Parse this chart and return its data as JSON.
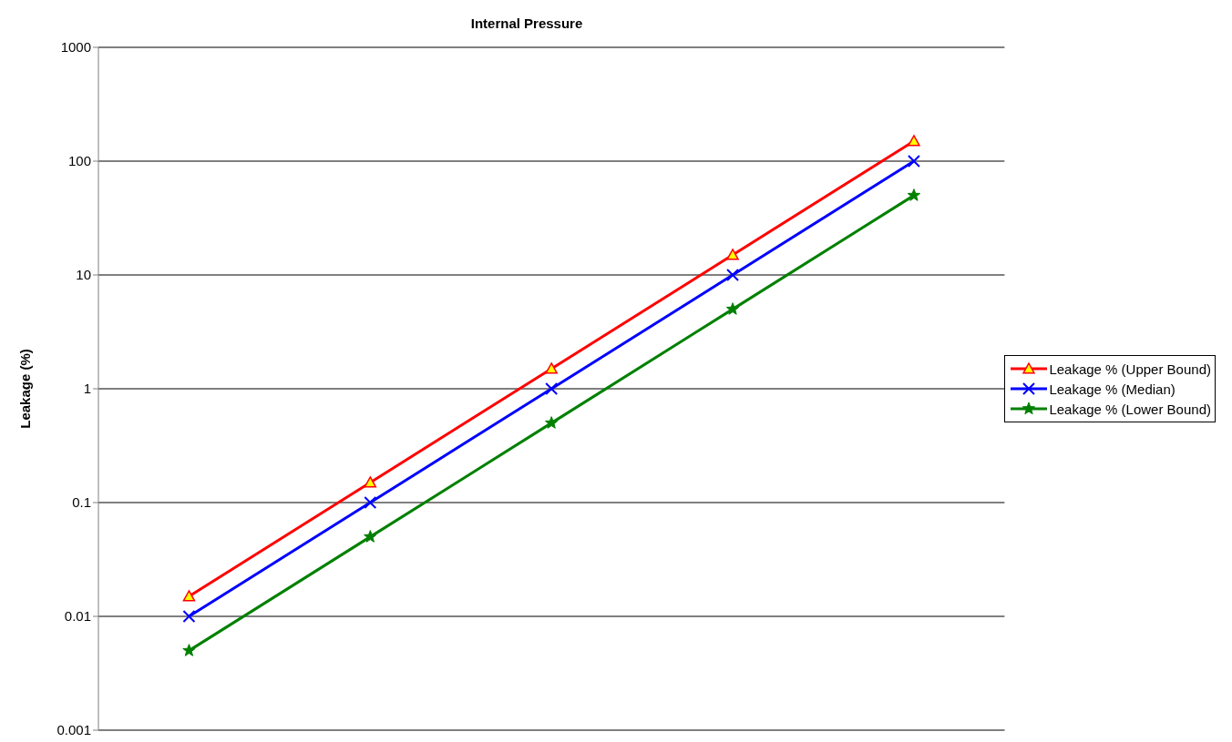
{
  "chart_data": {
    "type": "line",
    "title": "Internal Pressure",
    "ylabel": "Leakage (%)",
    "categories": [
      null,
      null,
      null,
      null,
      null
    ],
    "series": [
      {
        "name": "Leakage % (Upper Bound)",
        "color": "#ff0000",
        "marker": "triangle",
        "values": [
          0.015,
          0.15,
          1.5,
          15,
          150
        ]
      },
      {
        "name": "Leakage % (Median)",
        "color": "#0000ff",
        "marker": "cross",
        "values": [
          0.01,
          0.1,
          1,
          10,
          100
        ]
      },
      {
        "name": "Leakage % (Lower Bound)",
        "color": "#008000",
        "marker": "star",
        "values": [
          0.005,
          0.05,
          0.5,
          5,
          50
        ]
      }
    ],
    "log": "y",
    "ylim": [
      0.001,
      1000
    ],
    "yticks": [
      0.001,
      0.01,
      0.1,
      1,
      10,
      100,
      1000
    ],
    "grid": "y",
    "legend": "right"
  }
}
